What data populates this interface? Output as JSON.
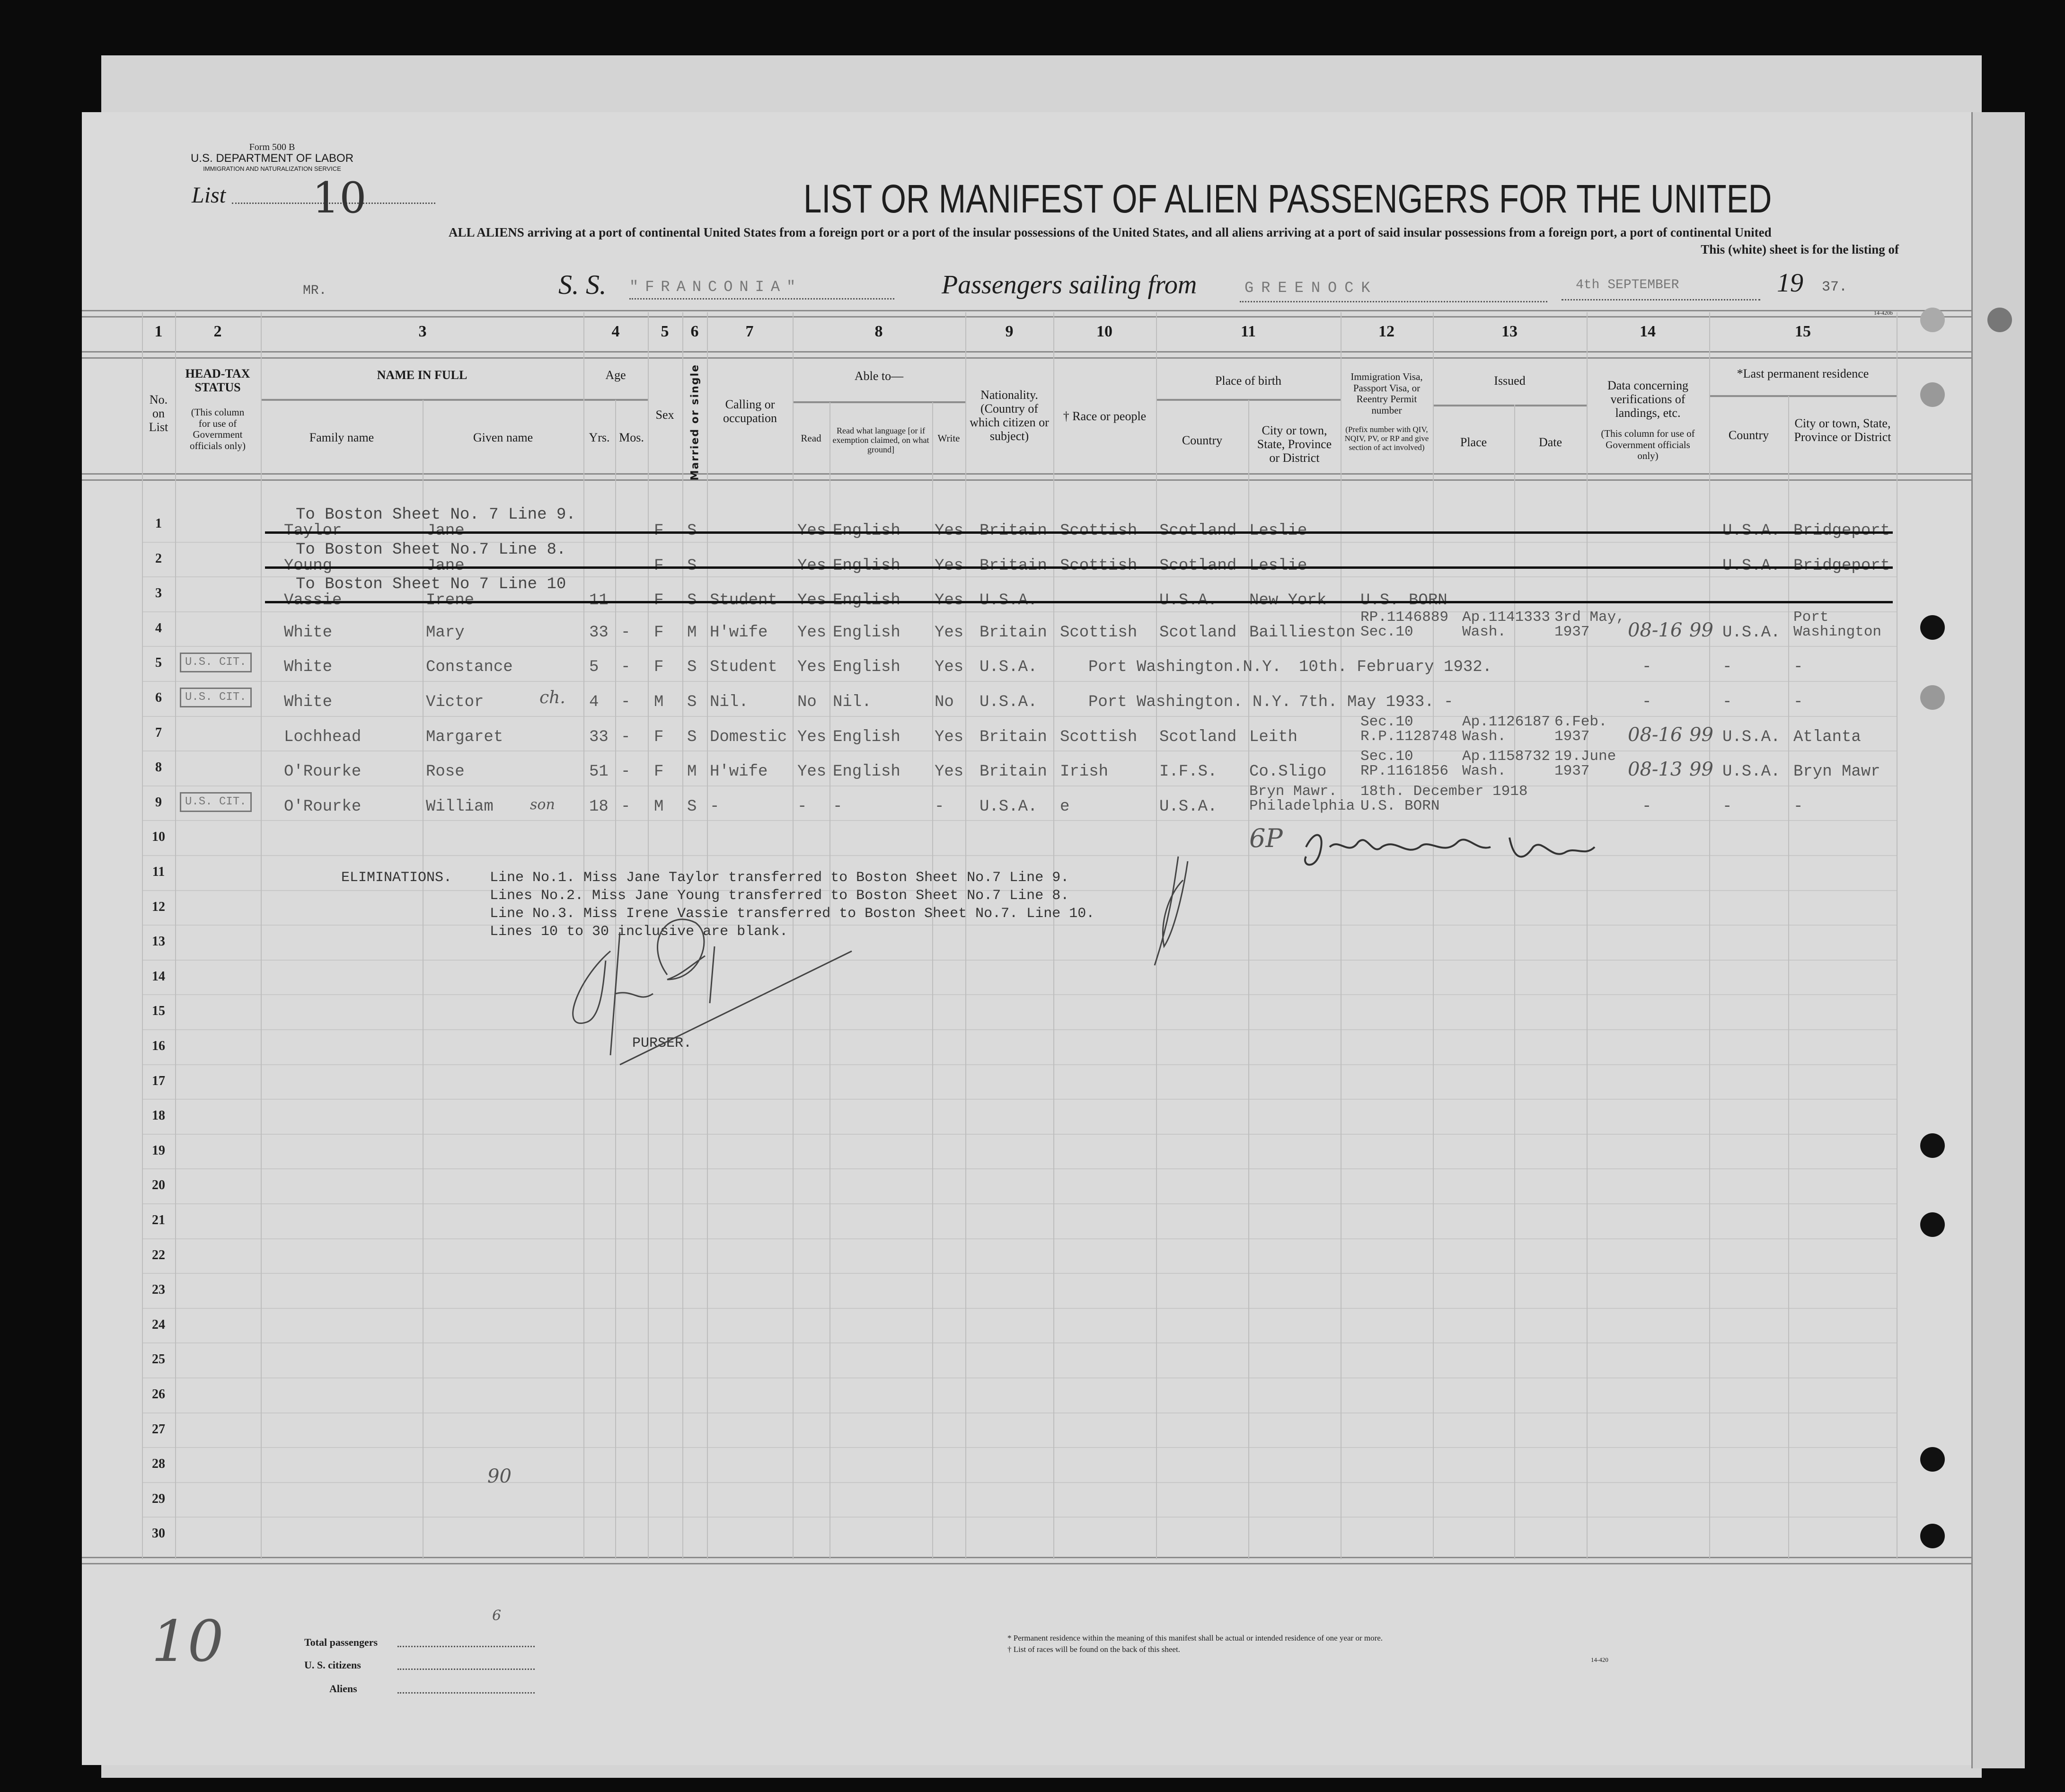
{
  "form": {
    "form_number": "Form 500 B",
    "department": "U.S. DEPARTMENT OF LABOR",
    "service": "IMMIGRATION AND NATURALIZATION SERVICE",
    "list_label": "List",
    "list_number": "10",
    "title": "LIST OR MANIFEST OF ALIEN PASSENGERS FOR THE UNITED",
    "subtitle": "ALL ALIENS arriving at a port of continental United States from a foreign port or a port of the insular possessions of the United States, and all aliens arriving at a port of said insular possessions from a foreign port, a port of continental United",
    "sheet_note": "This (white) sheet is for the listing of",
    "mr_label": "MR.",
    "ss_label": "S. S.",
    "ship_name": "\"FRANCONIA\"",
    "sailing_label": "Passengers sailing from",
    "port": "GREENOCK",
    "date": "4th SEPTEMBER",
    "year_prefix": "19",
    "year_suffix": "37.",
    "form_code_top": "14-420b"
  },
  "table": {
    "column_numbers": [
      "1",
      "2",
      "3",
      "4",
      "5",
      "6",
      "7",
      "8",
      "9",
      "10",
      "11",
      "12",
      "13",
      "14",
      "15"
    ],
    "headers": {
      "no_on_list": "No. on List",
      "head_tax": "HEAD-TAX STATUS",
      "head_tax_note": "(This column for use of Government officials only)",
      "name_in_full": "NAME IN FULL",
      "family_name": "Family name",
      "given_name": "Given name",
      "age": "Age",
      "yrs": "Yrs.",
      "mos": "Mos.",
      "sex": "Sex",
      "married": "Married or single",
      "calling": "Calling or occupation",
      "able_to": "Able to—",
      "read": "Read",
      "read_language": "Read what language [or if exemption claimed, on what ground]",
      "write": "Write",
      "nationality": "Nationality. (Country of which citizen or subject)",
      "race": "† Race or people",
      "place_of_birth": "Place of birth",
      "birth_country": "Country",
      "birth_city": "City or town, State, Province or District",
      "visa": "Immigration Visa, Passport Visa, or Reentry Permit number",
      "visa_note": "(Prefix number with QIV, NQIV, PV, or RP and give section of act involved)",
      "issued": "Issued",
      "issued_place": "Place",
      "issued_date": "Date",
      "data14": "Data concerning verifications of landings, etc.",
      "data14_note": "(This column for use of Government officials only)",
      "last_residence": "*Last permanent residence",
      "res_country": "Country",
      "res_city": "City or town, State, Province or District"
    },
    "line_numbers": [
      "1",
      "2",
      "3",
      "4",
      "5",
      "6",
      "7",
      "8",
      "9",
      "10",
      "11",
      "12",
      "13",
      "14",
      "15",
      "16",
      "17",
      "18",
      "19",
      "20",
      "21",
      "22",
      "23",
      "24",
      "25",
      "26",
      "27",
      "28",
      "29",
      "30"
    ],
    "rows": [
      {
        "struck": true,
        "transfer_note": "To Boston Sheet No. 7 Line 9.",
        "family": "Taylor",
        "given": "Jane",
        "sex": "F",
        "marital": "S",
        "read": "Yes",
        "language": "English",
        "write": "Yes",
        "nationality": "Britain",
        "race": "Scottish",
        "birth_country": "Scotland",
        "birth_city": "Leslie",
        "res_country": "U.S.A.",
        "res_city": "Bridgeport"
      },
      {
        "struck": true,
        "transfer_note": "To Boston Sheet No.7 Line 8.",
        "family": "Young",
        "given": "Jane",
        "sex": "F",
        "marital": "S",
        "read": "Yes",
        "language": "English",
        "write": "Yes",
        "nationality": "Britain",
        "race": "Scottish",
        "birth_country": "Scotland",
        "birth_city": "Leslie",
        "res_country": "U.S.A.",
        "res_city": "Bridgeport"
      },
      {
        "struck": true,
        "transfer_note": "To Boston Sheet No 7 Line 10",
        "family": "Vassie",
        "given": "Irene",
        "yrs": "11",
        "sex": "F",
        "marital": "S",
        "calling": "Student",
        "read": "Yes",
        "language": "English",
        "write": "Yes",
        "nationality": "U.S.A.",
        "birth_country": "U.S.A.",
        "birth_city": "New York",
        "visa": "U.S. BORN"
      },
      {
        "family": "White",
        "given": "Mary",
        "yrs": "33",
        "mos": "-",
        "sex": "F",
        "marital": "M",
        "calling": "H'wife",
        "read": "Yes",
        "language": "English",
        "write": "Yes",
        "nationality": "Britain",
        "race": "Scottish",
        "birth_country": "Scotland",
        "birth_city": "Baillieston",
        "visa": [
          "RP.1146889",
          "Sec.10"
        ],
        "issued_place": [
          "Ap.1141333",
          "Wash."
        ],
        "issued_date": [
          "3rd May,",
          "1937"
        ],
        "res_country": "U.S.A.",
        "res_city": [
          "Port",
          "Washington"
        ]
      },
      {
        "head_tax": "U.S. CIT.",
        "family": "White",
        "given": "Constance",
        "yrs": "5",
        "mos": "-",
        "sex": "F",
        "marital": "S",
        "calling": "Student",
        "read": "Yes",
        "language": "English",
        "write": "Yes",
        "nationality": "U.S.A.",
        "birth_span": "Port Washington.N.Y.",
        "birth_date": "10th. February 1932.",
        "data14": "-",
        "res_country": "-",
        "res_city": "-"
      },
      {
        "head_tax": "U.S. CIT.",
        "family": "White",
        "given": "Victor",
        "yrs": "4",
        "mos": "-",
        "sex": "M",
        "marital": "S",
        "calling": "Nil.",
        "read": "No",
        "language": "Nil.",
        "write": "No",
        "nationality": "U.S.A.",
        "birth_span": "Port Washington. N.Y.",
        "birth_date": "7th. May 1933.  -",
        "data14": "-",
        "res_country": "-",
        "res_city": "-"
      },
      {
        "family": "Lochhead",
        "given": "Margaret",
        "yrs": "33",
        "mos": "-",
        "sex": "F",
        "marital": "S",
        "calling": "Domestic",
        "read": "Yes",
        "language": "English",
        "write": "Yes",
        "nationality": "Britain",
        "race": "Scottish",
        "birth_country": "Scotland",
        "birth_city": "Leith",
        "visa": [
          "Sec.10",
          "R.P.1128748"
        ],
        "issued_place": [
          "Ap.1126187",
          "Wash."
        ],
        "issued_date": [
          "6.Feb.",
          "1937"
        ],
        "res_country": "U.S.A.",
        "res_city": "Atlanta"
      },
      {
        "family": "O'Rourke",
        "given": "Rose",
        "yrs": "51",
        "mos": "-",
        "sex": "F",
        "marital": "M",
        "calling": "H'wife",
        "read": "Yes",
        "language": "English",
        "write": "Yes",
        "nationality": "Britain",
        "race": "Irish",
        "birth_country": "I.F.S.",
        "birth_city": "Co.Sligo",
        "visa": [
          "Sec.10",
          "RP.1161856"
        ],
        "issued_place": [
          "Ap.1158732",
          "Wash."
        ],
        "issued_date": [
          "19.June",
          "1937"
        ],
        "res_country": "U.S.A.",
        "res_city": "Bryn Mawr"
      },
      {
        "head_tax": "U.S. CIT.",
        "family": "O'Rourke",
        "given": "William",
        "yrs": "18",
        "mos": "-",
        "sex": "M",
        "marital": "S",
        "calling": "-",
        "read": "-",
        "language": "-",
        "write": "-",
        "nationality": "U.S.A.",
        "race": "e",
        "birth_country": "U.S.A.",
        "birth_city": [
          "Bryn Mawr.",
          "Philadelphia"
        ],
        "visa": [
          "18th. December 1918",
          "U.S. BORN"
        ],
        "data14": "-",
        "res_country": "-",
        "res_city": "-"
      }
    ]
  },
  "eliminations": {
    "label": "ELIMINATIONS.",
    "lines": [
      "Line No.1. Miss Jane Taylor transferred to Boston Sheet No.7 Line 9.",
      "Lines No.2. Miss Jane Young  transferred to Boston Sheet No.7 Line 8.",
      "Line No.3. Miss Irene Vassie transferred to Boston Sheet No.7. Line 10.",
      "Lines 10 to 30 inclusive are blank."
    ],
    "purser": "PURSER."
  },
  "handwritten": [
    "08-16",
    "08-16",
    "08-13",
    "99",
    "99",
    "99",
    "ch.",
    "son",
    "6P",
    "90",
    "10",
    "6"
  ],
  "footer": {
    "total_passengers": "Total passengers",
    "us_citizens": "U. S. citizens",
    "aliens": "Aliens",
    "footnote_1": "* Permanent residence within the meaning of this manifest shall be actual or intended residence of one year or more.",
    "footnote_2": "† List of races will be found on the back of this sheet.",
    "form_code": "14-420"
  },
  "colors": {
    "paper": "#dadada",
    "ink_typed": "#555555",
    "ink_print": "#1a1a1a",
    "background": "#0b0b0b"
  }
}
